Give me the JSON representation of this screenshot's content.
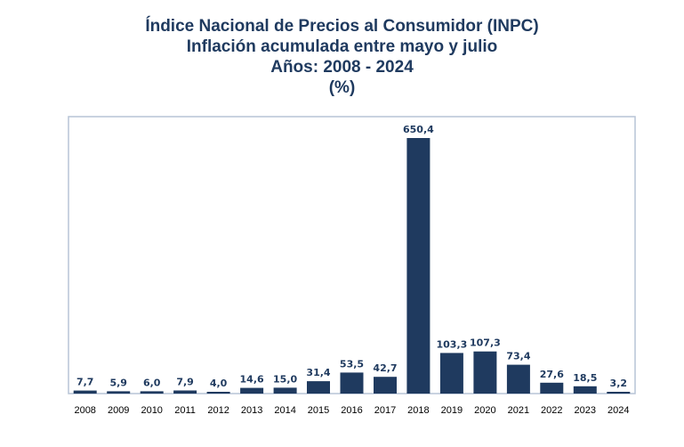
{
  "header": {
    "line1": "Índice Nacional de Precios al Consumidor (INPC)",
    "line2": "Inflación acumulada entre mayo y julio",
    "line3": "Años: 2008 - 2024",
    "line4": "(%)"
  },
  "colors": {
    "bar": "#1f3a5f",
    "frame": "#b7c4d6",
    "title": "#1f3a5f"
  },
  "chart_data": {
    "type": "bar",
    "title": "Índice Nacional de Precios al Consumidor (INPC) Inflación acumulada entre mayo y julio Años: 2008 - 2024 (%)",
    "xlabel": "",
    "ylabel": "",
    "ylim": [
      0,
      650.4
    ],
    "grid": false,
    "legend": "none",
    "categories": [
      "2008",
      "2009",
      "2010",
      "2011",
      "2012",
      "2013",
      "2014",
      "2015",
      "2016",
      "2017",
      "2018",
      "2019",
      "2020",
      "2021",
      "2022",
      "2023",
      "2024"
    ],
    "values": [
      7.7,
      5.9,
      6.0,
      7.9,
      4.0,
      14.6,
      15.0,
      31.4,
      53.5,
      42.7,
      650.4,
      103.3,
      107.3,
      73.4,
      27.6,
      18.5,
      3.2
    ],
    "labels": [
      "7,7",
      "5,9",
      "6,0",
      "7,9",
      "4,0",
      "14,6",
      "15,0",
      "31,4",
      "53,5",
      "42,7",
      "650,4",
      "103,3",
      "107,3",
      "73,4",
      "27,6",
      "18,5",
      "3,2"
    ]
  }
}
